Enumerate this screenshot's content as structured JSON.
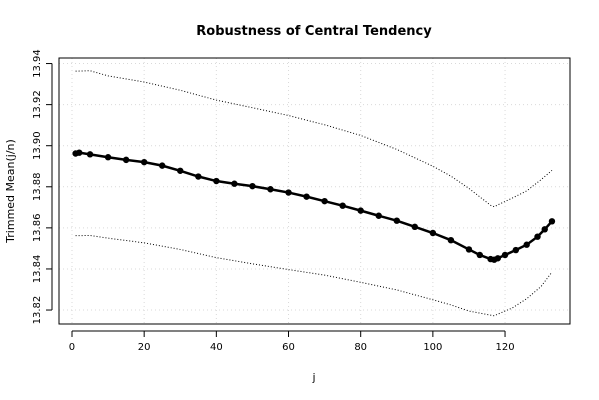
{
  "chart_data": {
    "type": "line",
    "title": "Robustness of Central Tendency",
    "xlabel": "j",
    "ylabel": "Trimmed Mean(j/n)",
    "xlim": [
      -3.6,
      138
    ],
    "ylim": [
      13.8132,
      13.9427
    ],
    "x_ticks": [
      0,
      20,
      40,
      60,
      80,
      100,
      120
    ],
    "y_ticks": [
      13.82,
      13.84,
      13.86,
      13.88,
      13.9,
      13.92,
      13.94
    ],
    "x_tick_labels": [
      "0",
      "20",
      "40",
      "60",
      "80",
      "100",
      "120"
    ],
    "y_tick_labels": [
      "13.82",
      "13.84",
      "13.86",
      "13.88",
      "13.90",
      "13.92",
      "13.94"
    ],
    "grid": true,
    "series": [
      {
        "role": "trimmed-mean",
        "style": "points-line",
        "color": "#000000",
        "points": [
          [
            1,
            13.8962
          ],
          [
            2,
            13.8966
          ],
          [
            5,
            13.8958
          ],
          [
            10,
            13.8944
          ],
          [
            15,
            13.8931
          ],
          [
            20,
            13.892
          ],
          [
            25,
            13.8903
          ],
          [
            30,
            13.8878
          ],
          [
            35,
            13.885
          ],
          [
            40,
            13.8828
          ],
          [
            45,
            13.8815
          ],
          [
            50,
            13.8803
          ],
          [
            55,
            13.8788
          ],
          [
            60,
            13.8772
          ],
          [
            65,
            13.8752
          ],
          [
            70,
            13.873
          ],
          [
            75,
            13.8708
          ],
          [
            80,
            13.8684
          ],
          [
            85,
            13.8659
          ],
          [
            90,
            13.8635
          ],
          [
            95,
            13.8605
          ],
          [
            100,
            13.8575
          ],
          [
            105,
            13.854
          ],
          [
            110,
            13.8495
          ],
          [
            113,
            13.8468
          ],
          [
            116,
            13.8448
          ],
          [
            117,
            13.8445
          ],
          [
            118,
            13.8452
          ],
          [
            120,
            13.8468
          ],
          [
            123,
            13.8492
          ],
          [
            126,
            13.8518
          ],
          [
            129,
            13.8557
          ],
          [
            131,
            13.8593
          ],
          [
            133,
            13.8632
          ]
        ]
      },
      {
        "role": "upper-bound",
        "style": "dotted",
        "color": "#000000",
        "points": [
          [
            1,
            13.9363
          ],
          [
            5,
            13.9365
          ],
          [
            10,
            13.934
          ],
          [
            20,
            13.931
          ],
          [
            30,
            13.927
          ],
          [
            40,
            13.9222
          ],
          [
            50,
            13.9185
          ],
          [
            60,
            13.9147
          ],
          [
            70,
            13.9102
          ],
          [
            80,
            13.905
          ],
          [
            90,
            13.8982
          ],
          [
            100,
            13.89
          ],
          [
            105,
            13.8852
          ],
          [
            110,
            13.8792
          ],
          [
            116,
            13.871
          ],
          [
            117,
            13.8703
          ],
          [
            118,
            13.8712
          ],
          [
            122,
            13.8745
          ],
          [
            126,
            13.878
          ],
          [
            130,
            13.8835
          ],
          [
            133,
            13.888
          ]
        ]
      },
      {
        "role": "lower-bound",
        "style": "dotted",
        "color": "#000000",
        "points": [
          [
            1,
            13.8562
          ],
          [
            5,
            13.8563
          ],
          [
            10,
            13.855
          ],
          [
            20,
            13.8527
          ],
          [
            30,
            13.8495
          ],
          [
            40,
            13.8455
          ],
          [
            50,
            13.8425
          ],
          [
            60,
            13.8397
          ],
          [
            70,
            13.837
          ],
          [
            80,
            13.8335
          ],
          [
            90,
            13.8298
          ],
          [
            100,
            13.825
          ],
          [
            105,
            13.8225
          ],
          [
            110,
            13.8195
          ],
          [
            116,
            13.8175
          ],
          [
            117,
            13.8172
          ],
          [
            118,
            13.818
          ],
          [
            122,
            13.821
          ],
          [
            126,
            13.8255
          ],
          [
            130,
            13.8315
          ],
          [
            133,
            13.8385
          ]
        ]
      }
    ]
  }
}
